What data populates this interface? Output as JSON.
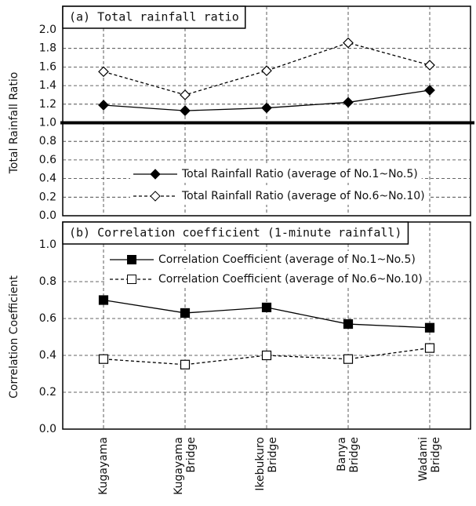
{
  "chart_data": [
    {
      "type": "line",
      "title": "(a) Total rainfall ratio",
      "y_label": "Total Rainfall Ratio",
      "categories": [
        "Kugayama",
        "Kugayama Bridge",
        "Ikebukuro Bridge",
        "Banya Bridge",
        "Wadami Bridge"
      ],
      "series": [
        {
          "name": "Total Rainfall Ratio (average of No.1~No.5)",
          "color": "#000000",
          "marker": "diamond",
          "filled": true,
          "dashed": false,
          "values": [
            1.19,
            1.13,
            1.16,
            1.22,
            1.35
          ]
        },
        {
          "name": "Total Rainfall Ratio (average of No.6~No.10)",
          "color": "#000000",
          "marker": "diamond",
          "filled": false,
          "dashed": true,
          "values": [
            1.55,
            1.3,
            1.56,
            1.86,
            1.62
          ]
        }
      ],
      "ylim": [
        0,
        2
      ],
      "yticks": [
        {
          "value": 0,
          "label": "0.0"
        },
        0.2,
        0.4,
        0.6,
        0.8,
        {
          "value": 1,
          "label": "1.0"
        },
        1.2,
        1.4,
        1.6,
        1.8,
        {
          "value": 2,
          "label": "2.0"
        }
      ],
      "reference_line": 1,
      "grid": true
    },
    {
      "type": "line",
      "title": "(b) Correlation coefficient (1-minute rainfall)",
      "y_label": "Correlation Coefficient",
      "categories": [
        "Kugayama",
        "Kugayama Bridge",
        "Ikebukuro Bridge",
        "Banya Bridge",
        "Wadami Bridge"
      ],
      "series": [
        {
          "name": "Correlation Coefficient (average of No.1~No.5)",
          "color": "#000000",
          "marker": "square",
          "filled": true,
          "dashed": false,
          "values": [
            0.7,
            0.63,
            0.66,
            0.57,
            0.55
          ]
        },
        {
          "name": "Correlation Coefficient (average of No.6~No.10)",
          "color": "#000000",
          "marker": "square",
          "filled": false,
          "dashed": true,
          "values": [
            0.38,
            0.35,
            0.4,
            0.38,
            0.44
          ]
        }
      ],
      "ylim": [
        0,
        1
      ],
      "yticks": [
        {
          "value": 0,
          "label": "0.0"
        },
        0.2,
        0.4,
        0.6,
        0.8,
        {
          "value": 1,
          "label": "1.0"
        }
      ],
      "grid": true
    }
  ]
}
